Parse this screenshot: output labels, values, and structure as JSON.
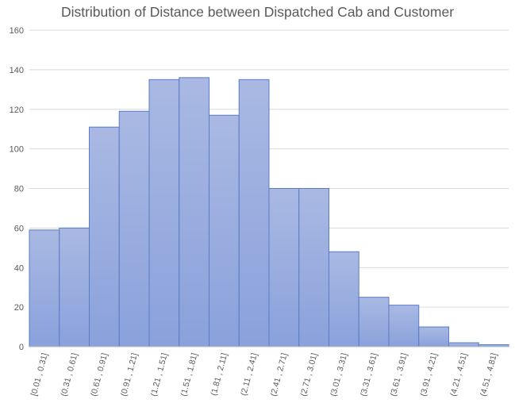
{
  "chart_data": {
    "type": "bar",
    "title": "Distribution of Distance between Dispatched Cab and Customer",
    "xlabel": "",
    "ylabel": "",
    "ylim": [
      0,
      160
    ],
    "yticks": [
      0,
      20,
      40,
      60,
      80,
      100,
      120,
      140,
      160
    ],
    "grid": true,
    "categories": [
      "[0.01 , 0.31]",
      "(0.31 , 0.61]",
      "(0.61 , 0.91]",
      "(0.91 , 1.21]",
      "(1.21 , 1.51]",
      "(1.51 , 1.81]",
      "(1.81 , 2.11]",
      "(2.11 , 2.41]",
      "(2.41 , 2.71]",
      "(2.71 , 3.01]",
      "(3.01 , 3.31]",
      "(3.31 , 3.61]",
      "(3.61 , 3.91]",
      "(3.91 , 4.21]",
      "(4.21 , 4.51]",
      "(4.51 , 4.81]"
    ],
    "values": [
      59,
      60,
      111,
      119,
      135,
      136,
      117,
      135,
      80,
      80,
      48,
      25,
      21,
      10,
      2,
      1
    ],
    "colors": {
      "bar_top": "#a9b9e3",
      "bar_bottom": "#8aa1db",
      "bar_edge": "#5b7bc7"
    }
  }
}
